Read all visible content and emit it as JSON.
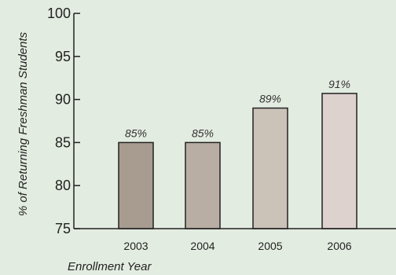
{
  "chart_data": {
    "type": "bar",
    "categories": [
      "2003",
      "2004",
      "2005",
      "2006"
    ],
    "values": [
      85,
      85,
      89,
      90.7
    ],
    "data_labels": [
      "85%",
      "85%",
      "89%",
      "91%"
    ],
    "bar_colors": [
      "#a89c90",
      "#b8aea4",
      "#cbc2b8",
      "#ddd2ce"
    ],
    "xlabel": "Enrollment Year",
    "ylabel": "% of Returning Freshman Students",
    "ylim": [
      75,
      100
    ],
    "yticks": [
      "75",
      "80",
      "85",
      "90",
      "95",
      "100"
    ],
    "grid": false,
    "legend": "none"
  },
  "colors": {
    "background": "#e3ece0",
    "axis": "#222222"
  }
}
